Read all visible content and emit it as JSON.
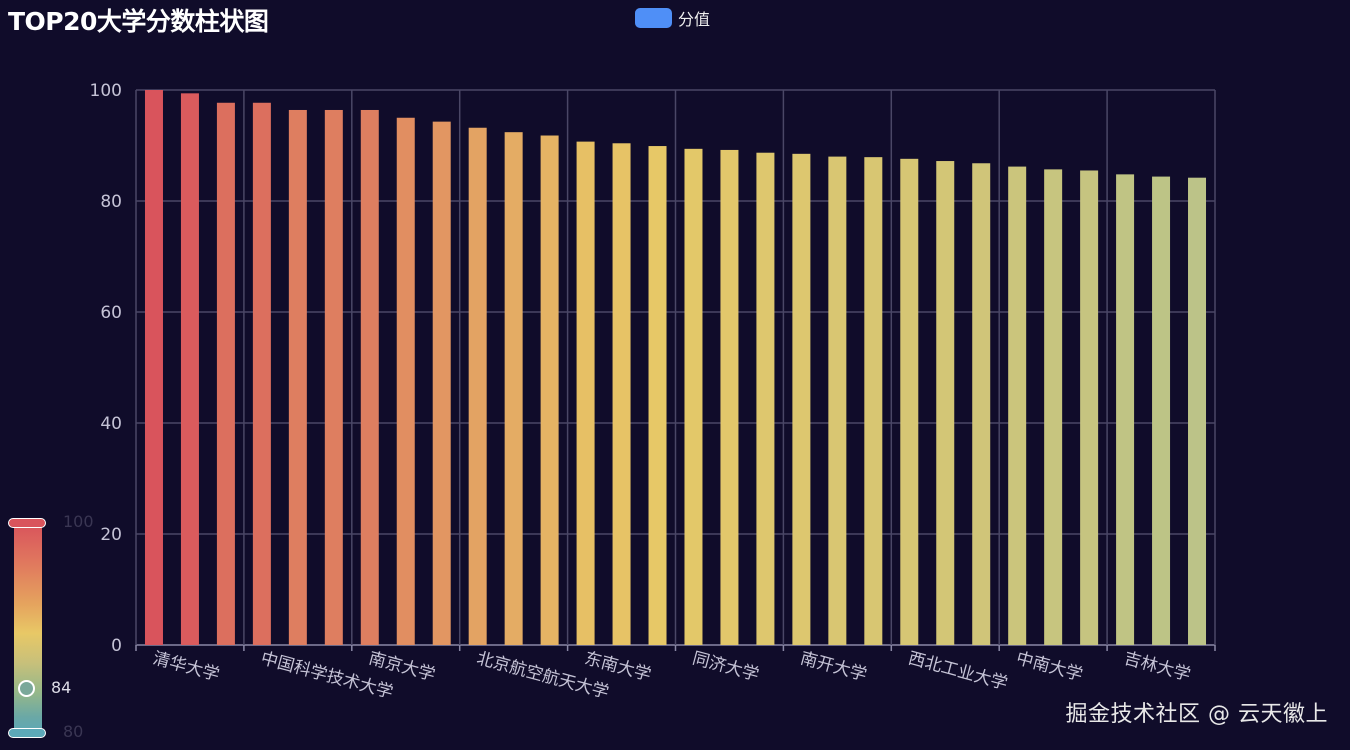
{
  "title": "TOP20大学分数柱状图",
  "legend": {
    "label": "分值",
    "color": "#4f8ff7"
  },
  "watermark": "掘金技术社区 @ 云天徽上",
  "visual_map": {
    "max_label": "100",
    "min_label": "80",
    "current_label": "84"
  },
  "chart_data": {
    "type": "bar",
    "title": "TOP20大学分数柱状图",
    "series": [
      {
        "name": "分值",
        "values": [
          100,
          99.4,
          97.7,
          97.7,
          96.4,
          96.4,
          96.4,
          95.0,
          94.3,
          93.2,
          92.4,
          91.8,
          90.7,
          90.4,
          89.9,
          89.4,
          89.2,
          88.7,
          88.5,
          88.0,
          87.9,
          87.6,
          87.2,
          86.8,
          86.2,
          85.7,
          85.5,
          84.8,
          84.4,
          84.2
        ]
      }
    ],
    "xlabels": [
      "清华大学",
      "中国科学技术大学",
      "南京大学",
      "北京航空航天大学",
      "东南大学",
      "同济大学",
      "南开大学",
      "西北工业大学",
      "中南大学",
      "吉林大学"
    ],
    "yticks": [
      "0",
      "20",
      "40",
      "60",
      "80",
      "100"
    ],
    "ylim": [
      0,
      100
    ],
    "color_range": [
      80,
      100
    ],
    "colors": [
      "#d9545c",
      "#e8c866",
      "#9cc0a0"
    ],
    "grid": true,
    "legend_position": "top-center"
  }
}
